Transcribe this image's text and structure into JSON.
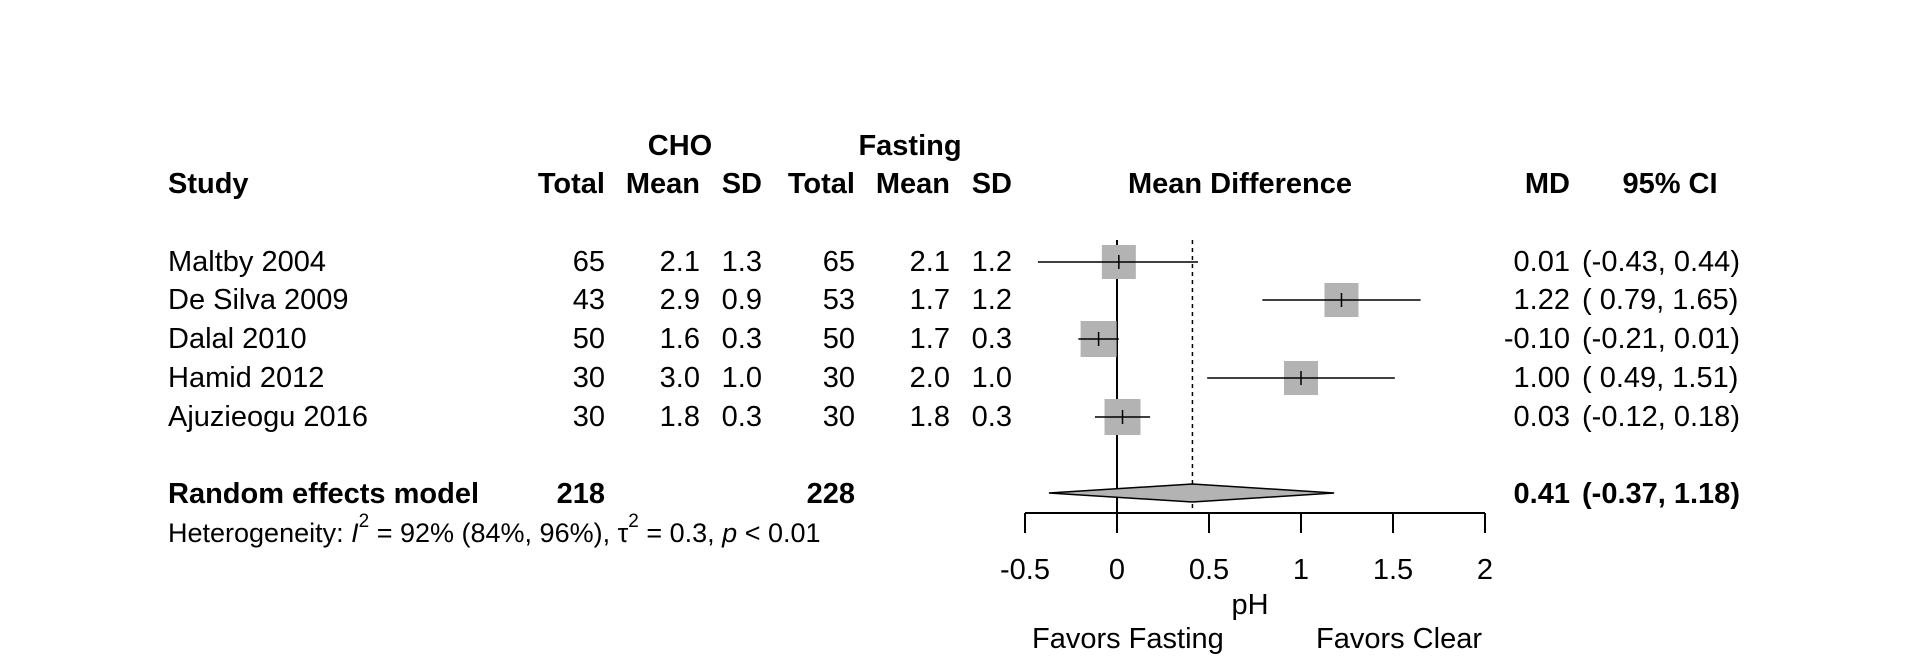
{
  "headers": {
    "study": "Study",
    "cho_group": "CHO",
    "fasting_group": "Fasting",
    "total": "Total",
    "mean": "Mean",
    "sd": "SD",
    "plot_title": "Mean Difference",
    "md": "MD",
    "ci": "95% CI"
  },
  "studies": [
    {
      "name": "Maltby 2004",
      "cho_total": "65",
      "cho_mean": "2.1",
      "cho_sd": "1.3",
      "fast_total": "65",
      "fast_mean": "2.1",
      "fast_sd": "1.2",
      "md_text": "0.01",
      "ci_text": "(-0.43, 0.44)"
    },
    {
      "name": "De Silva 2009",
      "cho_total": "43",
      "cho_mean": "2.9",
      "cho_sd": "0.9",
      "fast_total": "53",
      "fast_mean": "1.7",
      "fast_sd": "1.2",
      "md_text": "1.22",
      "ci_text": "( 0.79, 1.65)"
    },
    {
      "name": "Dalal 2010",
      "cho_total": "50",
      "cho_mean": "1.6",
      "cho_sd": "0.3",
      "fast_total": "50",
      "fast_mean": "1.7",
      "fast_sd": "0.3",
      "md_text": "-0.10",
      "ci_text": "(-0.21, 0.01)"
    },
    {
      "name": "Hamid 2012",
      "cho_total": "30",
      "cho_mean": "3.0",
      "cho_sd": "1.0",
      "fast_total": "30",
      "fast_mean": "2.0",
      "fast_sd": "1.0",
      "md_text": "1.00",
      "ci_text": "( 0.49, 1.51)"
    },
    {
      "name": "Ajuzieogu 2016",
      "cho_total": "30",
      "cho_mean": "1.8",
      "cho_sd": "0.3",
      "fast_total": "30",
      "fast_mean": "1.8",
      "fast_sd": "0.3",
      "md_text": "0.03",
      "ci_text": "(-0.12, 0.18)"
    }
  ],
  "pooled": {
    "label": "Random effects model",
    "cho_total": "218",
    "fast_total": "228",
    "md_text": "0.41",
    "ci_text": "(-0.37, 1.18)"
  },
  "heterogeneity": {
    "prefix": "Heterogeneity: ",
    "i_symbol": "I",
    "i_sup": "2",
    "i_value": " = 92% (84%, 96%), ",
    "tau_symbol": "τ",
    "tau_sup": "2",
    "tau_value": " = 0.3, ",
    "p_symbol": "p",
    "p_value": " < 0.01"
  },
  "axis": {
    "label": "pH",
    "favors_left": "Favors Fasting",
    "favors_right": "Favors Clear"
  },
  "colors": {
    "box_fill": "#b3b3b3",
    "diamond_fill": "#b3b3b3",
    "line": "#000000"
  },
  "chart_data": {
    "type": "forest",
    "title": "Mean Difference",
    "xlabel": "pH",
    "xlim": [
      -0.5,
      2
    ],
    "ticks": [
      -0.5,
      0,
      0.5,
      1,
      1.5,
      2
    ],
    "tick_labels": [
      "-0.5",
      "0",
      "0.5",
      "1",
      "1.5",
      "2"
    ],
    "null_line": 0,
    "categories": [
      "Maltby 2004",
      "De Silva 2009",
      "Dalal 2010",
      "Hamid 2012",
      "Ajuzieogu 2016"
    ],
    "series": [
      {
        "name": "MD",
        "values": [
          0.01,
          1.22,
          -0.1,
          1.0,
          0.03
        ]
      },
      {
        "name": "lower",
        "values": [
          -0.43,
          0.79,
          -0.21,
          0.49,
          -0.12
        ]
      },
      {
        "name": "upper",
        "values": [
          0.44,
          1.65,
          0.01,
          1.51,
          0.18
        ]
      }
    ],
    "weights": [
      0.19,
      0.19,
      0.21,
      0.19,
      0.21
    ],
    "pooled": {
      "estimate": 0.41,
      "lower": -0.37,
      "upper": 1.18
    }
  }
}
